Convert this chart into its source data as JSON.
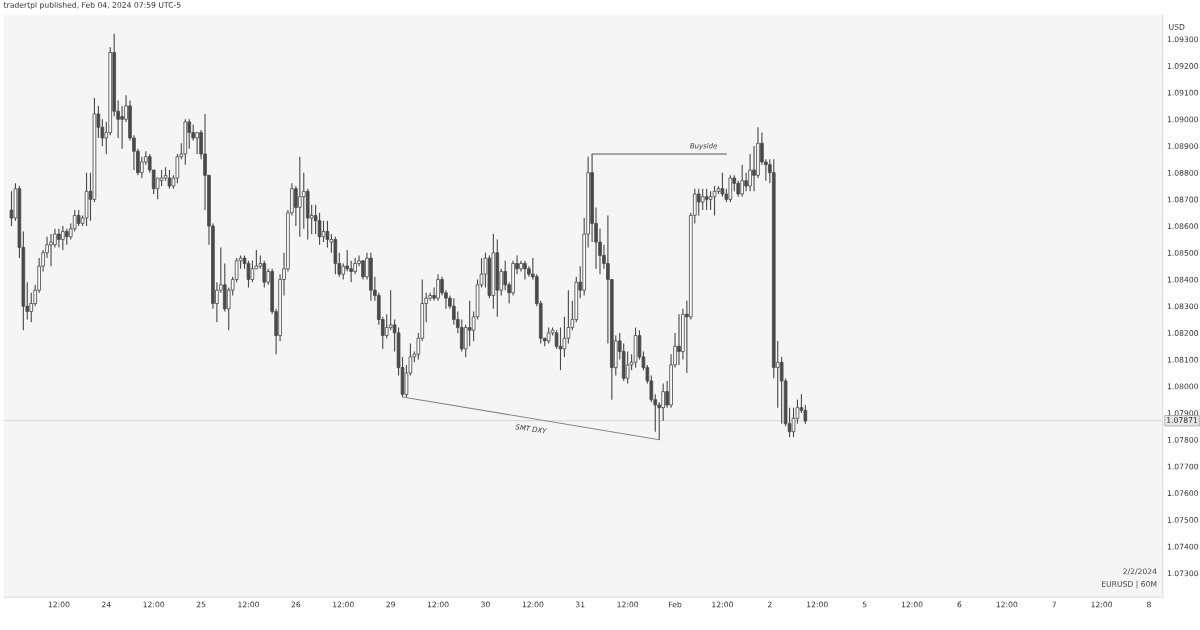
{
  "chart_data": {
    "type": "candlestick",
    "title": "tradertpl published, Feb 04, 2024 07:59 UTC-5",
    "ylabel": "USD",
    "color": "#4a4a4a",
    "categories": [
      null,
      null,
      null,
      null,
      null,
      null,
      null,
      null,
      null,
      null,
      null,
      null,
      "12:00",
      null,
      null,
      null,
      null,
      null,
      null,
      null,
      null,
      null,
      null,
      null,
      "24",
      null,
      null,
      null,
      null,
      null,
      null,
      null,
      null,
      null,
      null,
      null,
      "12:00",
      null,
      null,
      null,
      null,
      null,
      null,
      null,
      null,
      null,
      null,
      null,
      "25",
      null,
      null,
      null,
      null,
      null,
      null,
      null,
      null,
      null,
      null,
      null,
      "12:00",
      null,
      null,
      null,
      null,
      null,
      null,
      null,
      null,
      null,
      null,
      null,
      "26",
      null,
      null,
      null,
      null,
      null,
      null,
      null,
      null,
      null,
      null,
      null,
      "12:00",
      null,
      null,
      null,
      null,
      null,
      null,
      null,
      null,
      null,
      null,
      null,
      "29",
      null,
      null,
      null,
      null,
      null,
      null,
      null,
      null,
      null,
      null,
      null,
      "12:00",
      null,
      null,
      null,
      null,
      null,
      null,
      null,
      null,
      null,
      null,
      null,
      "30",
      null,
      null,
      null,
      null,
      null,
      null,
      null,
      null,
      null,
      null,
      null,
      "12:00",
      null,
      null,
      null,
      null,
      null,
      null,
      null,
      null,
      null,
      null,
      null,
      "31",
      null,
      null,
      null,
      null,
      null,
      null,
      null,
      null,
      null,
      null,
      null,
      "12:00",
      null,
      null,
      null,
      null,
      null,
      null,
      null,
      null,
      null,
      null,
      null,
      "Feb",
      null,
      null,
      null,
      null,
      null,
      null,
      null,
      null,
      null,
      null,
      null,
      "12:00",
      null,
      null,
      null,
      null,
      null,
      null,
      null,
      null,
      null,
      null,
      null,
      "2",
      null,
      null,
      null,
      null,
      null,
      null,
      null,
      null,
      null,
      null,
      null,
      "12:00",
      null,
      null,
      null,
      null,
      null,
      null,
      null,
      null,
      null,
      null,
      null,
      "5",
      null,
      null,
      null,
      null,
      null,
      null,
      null,
      null,
      null,
      null,
      null,
      "12:00",
      null,
      null,
      null,
      null,
      null,
      null,
      null,
      null,
      null,
      null,
      null,
      "6",
      null,
      null,
      null,
      null,
      null,
      null,
      null,
      null,
      null,
      null,
      null,
      "12:00",
      null,
      null,
      null,
      null,
      null,
      null,
      null,
      null,
      null,
      null,
      null,
      "7",
      null,
      null,
      null,
      null,
      null,
      null,
      null,
      null,
      null,
      null,
      null,
      "12:00",
      null,
      null,
      null,
      null,
      null,
      null,
      null,
      null,
      null,
      null,
      null,
      "8"
    ],
    "ohlc": [
      [
        1.0866,
        1.0873,
        1.086,
        1.0863
      ],
      [
        1.0863,
        1.0876,
        1.0862,
        1.0874
      ],
      [
        1.0874,
        1.0875,
        1.0848,
        1.0852
      ],
      [
        1.0852,
        1.0858,
        1.0821,
        1.083
      ],
      [
        1.083,
        1.0839,
        1.0825,
        1.0828
      ],
      [
        1.0828,
        1.0835,
        1.0824,
        1.0831
      ],
      [
        1.0831,
        1.0838,
        1.083,
        1.0836
      ],
      [
        1.0836,
        1.0848,
        1.0835,
        1.0845
      ],
      [
        1.0845,
        1.0851,
        1.0843,
        1.085
      ],
      [
        1.085,
        1.0856,
        1.0848,
        1.0853
      ],
      [
        1.0853,
        1.0857,
        1.0845,
        1.0854
      ],
      [
        1.0853,
        1.0859,
        1.0852,
        1.0857
      ],
      [
        1.0857,
        1.0859,
        1.0852,
        1.0855
      ],
      [
        1.0855,
        1.086,
        1.0851,
        1.0858
      ],
      [
        1.0858,
        1.0859,
        1.0853,
        1.0856
      ],
      [
        1.0856,
        1.0861,
        1.0855,
        1.0859
      ],
      [
        1.0859,
        1.0866,
        1.0858,
        1.0864
      ],
      [
        1.0864,
        1.0866,
        1.086,
        1.0861
      ],
      [
        1.0861,
        1.0864,
        1.086,
        1.0863
      ],
      [
        1.0863,
        1.088,
        1.086,
        1.0873
      ],
      [
        1.0873,
        1.088,
        1.0862,
        1.087
      ],
      [
        1.087,
        1.0908,
        1.0869,
        1.0902
      ],
      [
        1.0902,
        1.0905,
        1.0893,
        1.0897
      ],
      [
        1.0897,
        1.09,
        1.089,
        1.0893
      ],
      [
        1.0893,
        1.0899,
        1.0887,
        1.0895
      ],
      [
        1.0895,
        1.0927,
        1.0894,
        1.0925
      ],
      [
        1.0925,
        1.0932,
        1.0901,
        1.0903
      ],
      [
        1.0903,
        1.0907,
        1.0893,
        1.09
      ],
      [
        1.0901,
        1.0905,
        1.0889,
        1.09
      ],
      [
        1.09,
        1.0909,
        1.0899,
        1.0905
      ],
      [
        1.0905,
        1.0907,
        1.0892,
        1.0893
      ],
      [
        1.0893,
        1.0894,
        1.0881,
        1.0888
      ],
      [
        1.0888,
        1.0889,
        1.0879,
        1.088
      ],
      [
        1.088,
        1.0886,
        1.0878,
        1.0884
      ],
      [
        1.0884,
        1.0888,
        1.0883,
        1.0886
      ],
      [
        1.0886,
        1.0887,
        1.088,
        1.0881
      ],
      [
        1.0881,
        1.0881,
        1.0872,
        1.0874
      ],
      [
        1.0874,
        1.0878,
        1.087,
        1.0878
      ],
      [
        1.0877,
        1.0881,
        1.0875,
        1.0878
      ],
      [
        1.0878,
        1.0882,
        1.0877,
        1.0879
      ],
      [
        1.0878,
        1.0881,
        1.0874,
        1.0875
      ],
      [
        1.0875,
        1.0879,
        1.0874,
        1.0878
      ],
      [
        1.0878,
        1.0887,
        1.0876,
        1.0886
      ],
      [
        1.0886,
        1.0891,
        1.0885,
        1.0887
      ],
      [
        1.0887,
        1.09,
        1.0883,
        1.0899
      ],
      [
        1.0899,
        1.09,
        1.0889,
        1.0895
      ],
      [
        1.0895,
        1.0898,
        1.0892,
        1.0893
      ],
      [
        1.0893,
        1.0895,
        1.0887,
        1.0895
      ],
      [
        1.0895,
        1.0896,
        1.0885,
        1.0887
      ],
      [
        1.0887,
        1.0902,
        1.0866,
        1.0879
      ],
      [
        1.0879,
        1.0879,
        1.0853,
        1.086
      ],
      [
        1.086,
        1.0861,
        1.0829,
        1.0831
      ],
      [
        1.0831,
        1.0839,
        1.0824,
        1.0836
      ],
      [
        1.0836,
        1.0852,
        1.0835,
        1.0838
      ],
      [
        1.0838,
        1.0846,
        1.0828,
        1.0829
      ],
      [
        1.0829,
        1.0837,
        1.0821,
        1.0836
      ],
      [
        1.0836,
        1.0841,
        1.0834,
        1.084
      ],
      [
        1.084,
        1.0848,
        1.0839,
        1.0847
      ],
      [
        1.0847,
        1.0849,
        1.0844,
        1.0848
      ],
      [
        1.0848,
        1.0849,
        1.0844,
        1.0846
      ],
      [
        1.0846,
        1.0847,
        1.0837,
        1.084
      ],
      [
        1.084,
        1.0847,
        1.0839,
        1.0844
      ],
      [
        1.0844,
        1.0851,
        1.0844,
        1.0845
      ],
      [
        1.0845,
        1.0849,
        1.0844,
        1.0846
      ],
      [
        1.0846,
        1.0847,
        1.0837,
        1.0839
      ],
      [
        1.0839,
        1.0844,
        1.0838,
        1.0843
      ],
      [
        1.0843,
        1.0844,
        1.0827,
        1.0828
      ],
      [
        1.0828,
        1.0829,
        1.0812,
        1.0819
      ],
      [
        1.0819,
        1.0842,
        1.0817,
        1.084
      ],
      [
        1.084,
        1.085,
        1.0834,
        1.0844
      ],
      [
        1.0844,
        1.0866,
        1.0843,
        1.0865
      ],
      [
        1.0865,
        1.0876,
        1.0864,
        1.0874
      ],
      [
        1.0874,
        1.0875,
        1.086,
        1.0867
      ],
      [
        1.0867,
        1.0886,
        1.0856,
        1.0871
      ],
      [
        1.0871,
        1.088,
        1.0859,
        1.0873
      ],
      [
        1.0873,
        1.0874,
        1.0855,
        1.0863
      ],
      [
        1.0863,
        1.0868,
        1.0857,
        1.0864
      ],
      [
        1.0864,
        1.0868,
        1.0857,
        1.0862
      ],
      [
        1.0862,
        1.0865,
        1.0853,
        1.0856
      ],
      [
        1.0856,
        1.0862,
        1.0854,
        1.0858
      ],
      [
        1.0858,
        1.0862,
        1.0852,
        1.0855
      ],
      [
        1.0854,
        1.0857,
        1.085,
        1.0855
      ],
      [
        1.0855,
        1.0856,
        1.0842,
        1.0846
      ],
      [
        1.0846,
        1.085,
        1.0841,
        1.0842
      ],
      [
        1.0842,
        1.0846,
        1.084,
        1.0845
      ],
      [
        1.0845,
        1.0851,
        1.0843,
        1.0844
      ],
      [
        1.0844,
        1.0847,
        1.0839,
        1.0843
      ],
      [
        1.0843,
        1.0848,
        1.0842,
        1.0846
      ],
      [
        1.0846,
        1.0849,
        1.0845,
        1.0847
      ],
      [
        1.0847,
        1.0847,
        1.084,
        1.0841
      ],
      [
        1.0841,
        1.085,
        1.084,
        1.0848
      ],
      [
        1.0848,
        1.085,
        1.0832,
        1.0836
      ],
      [
        1.0836,
        1.0841,
        1.0832,
        1.0834
      ],
      [
        1.0834,
        1.0835,
        1.0823,
        1.0825
      ],
      [
        1.0825,
        1.0826,
        1.0814,
        1.0819
      ],
      [
        1.0819,
        1.0827,
        1.0818,
        1.0822
      ],
      [
        1.0822,
        1.0836,
        1.0821,
        1.0823
      ],
      [
        1.0823,
        1.0825,
        1.0813,
        1.082
      ],
      [
        1.082,
        1.0822,
        1.0804,
        1.0807
      ],
      [
        1.0807,
        1.0811,
        1.0796,
        1.0797
      ],
      [
        1.0797,
        1.0808,
        1.0796,
        1.0805
      ],
      [
        1.0805,
        1.0816,
        1.0804,
        1.0811
      ],
      [
        1.0811,
        1.0813,
        1.0809,
        1.0812
      ],
      [
        1.0812,
        1.082,
        1.081,
        1.0818
      ],
      [
        1.0818,
        1.084,
        1.0817,
        1.0831
      ],
      [
        1.0831,
        1.0835,
        1.0824,
        1.0833
      ],
      [
        1.0833,
        1.0835,
        1.0832,
        1.0834
      ],
      [
        1.0834,
        1.0837,
        1.0832,
        1.0833
      ],
      [
        1.0833,
        1.0842,
        1.0832,
        1.084
      ],
      [
        1.084,
        1.0841,
        1.0834,
        1.0835
      ],
      [
        1.0835,
        1.0836,
        1.0829,
        1.0833
      ],
      [
        1.0833,
        1.0834,
        1.0829,
        1.083
      ],
      [
        1.083,
        1.0833,
        1.0823,
        1.0825
      ],
      [
        1.0825,
        1.0828,
        1.082,
        1.0822
      ],
      [
        1.0822,
        1.0825,
        1.0813,
        1.0814
      ],
      [
        1.0814,
        1.0823,
        1.0811,
        1.0822
      ],
      [
        1.0822,
        1.0832,
        1.0815,
        1.0821
      ],
      [
        1.0821,
        1.0828,
        1.0817,
        1.0826
      ],
      [
        1.0826,
        1.084,
        1.0825,
        1.0838
      ],
      [
        1.0838,
        1.0848,
        1.0837,
        1.0842
      ],
      [
        1.0842,
        1.085,
        1.0837,
        1.0848
      ],
      [
        1.0848,
        1.0849,
        1.0833,
        1.0834
      ],
      [
        1.0834,
        1.0857,
        1.0829,
        1.085
      ],
      [
        1.085,
        1.0855,
        1.0826,
        1.0836
      ],
      [
        1.0836,
        1.0844,
        1.0834,
        1.0843
      ],
      [
        1.0843,
        1.0847,
        1.0836,
        1.0838
      ],
      [
        1.0838,
        1.0839,
        1.0831,
        1.0835
      ],
      [
        1.0835,
        1.0847,
        1.0834,
        1.0846
      ],
      [
        1.0846,
        1.0849,
        1.0842,
        1.0844
      ],
      [
        1.0844,
        1.0847,
        1.0843,
        1.0846
      ],
      [
        1.0846,
        1.0847,
        1.084,
        1.0844
      ],
      [
        1.0844,
        1.0845,
        1.0841,
        1.0842
      ],
      [
        1.0842,
        1.0848,
        1.084,
        1.0841
      ],
      [
        1.0841,
        1.0842,
        1.083,
        1.0831
      ],
      [
        1.0831,
        1.0832,
        1.0816,
        1.0818
      ],
      [
        1.0818,
        1.0818,
        1.0815,
        1.0817
      ],
      [
        1.0817,
        1.0822,
        1.0816,
        1.082
      ],
      [
        1.082,
        1.0822,
        1.0819,
        1.0821
      ],
      [
        1.082,
        1.0821,
        1.0814,
        1.0815
      ],
      [
        1.0815,
        1.0822,
        1.0806,
        1.0814
      ],
      [
        1.0814,
        1.0826,
        1.0811,
        1.0818
      ],
      [
        1.0818,
        1.0836,
        1.0816,
        1.0822
      ],
      [
        1.0822,
        1.0832,
        1.0821,
        1.0825
      ],
      [
        1.0825,
        1.0841,
        1.0824,
        1.0839
      ],
      [
        1.0839,
        1.0845,
        1.0833,
        1.0836
      ],
      [
        1.0836,
        1.0863,
        1.0834,
        1.0857
      ],
      [
        1.0857,
        1.0886,
        1.0852,
        1.088
      ],
      [
        1.088,
        1.0887,
        1.0854,
        1.0861
      ],
      [
        1.0861,
        1.0867,
        1.0844,
        1.0854
      ],
      [
        1.0854,
        1.0859,
        1.0842,
        1.0849
      ],
      [
        1.0849,
        1.0853,
        1.0844,
        1.0846
      ],
      [
        1.0846,
        1.0864,
        1.0816,
        1.084
      ],
      [
        1.084,
        1.084,
        1.0795,
        1.0807
      ],
      [
        1.0807,
        1.0819,
        1.0804,
        1.0817
      ],
      [
        1.0817,
        1.082,
        1.081,
        1.0813
      ],
      [
        1.0813,
        1.0816,
        1.0802,
        1.0803
      ],
      [
        1.0803,
        1.0813,
        1.0801,
        1.0808
      ],
      [
        1.0808,
        1.0812,
        1.0806,
        1.0809
      ],
      [
        1.0809,
        1.0822,
        1.0807,
        1.0819
      ],
      [
        1.0819,
        1.0821,
        1.081,
        1.0811
      ],
      [
        1.0811,
        1.0813,
        1.0806,
        1.0807
      ],
      [
        1.0807,
        1.0808,
        1.0801,
        1.0802
      ],
      [
        1.0802,
        1.0804,
        1.0794,
        1.0795
      ],
      [
        1.0795,
        1.0797,
        1.0783,
        1.0793
      ],
      [
        1.0793,
        1.0794,
        1.078,
        1.0792
      ],
      [
        1.0792,
        1.0801,
        1.0787,
        1.0798
      ],
      [
        1.0798,
        1.0802,
        1.0792,
        1.0793
      ],
      [
        1.0793,
        1.0812,
        1.0792,
        1.0808
      ],
      [
        1.0808,
        1.082,
        1.0807,
        1.0815
      ],
      [
        1.0815,
        1.0827,
        1.0808,
        1.0813
      ],
      [
        1.0813,
        1.0829,
        1.081,
        1.0827
      ],
      [
        1.0827,
        1.0832,
        1.0805,
        1.0826
      ],
      [
        1.0826,
        1.0865,
        1.0825,
        1.0864
      ],
      [
        1.0864,
        1.0874,
        1.0861,
        1.0872
      ],
      [
        1.0872,
        1.0874,
        1.0864,
        1.0869
      ],
      [
        1.0869,
        1.0874,
        1.0866,
        1.0871
      ],
      [
        1.0871,
        1.0874,
        1.0866,
        1.087
      ],
      [
        1.087,
        1.0873,
        1.0866,
        1.0871
      ],
      [
        1.0871,
        1.0875,
        1.0864,
        1.0873
      ],
      [
        1.0873,
        1.0875,
        1.0872,
        1.0874
      ],
      [
        1.0874,
        1.088,
        1.0871,
        1.0872
      ],
      [
        1.0872,
        1.0874,
        1.0869,
        1.087
      ],
      [
        1.087,
        1.0879,
        1.0869,
        1.0878
      ],
      [
        1.0878,
        1.0879,
        1.0873,
        1.0876
      ],
      [
        1.0876,
        1.0877,
        1.0871,
        1.0872
      ],
      [
        1.0872,
        1.0883,
        1.0871,
        1.0877
      ],
      [
        1.0877,
        1.088,
        1.0873,
        1.0875
      ],
      [
        1.0875,
        1.0887,
        1.0873,
        1.0881
      ],
      [
        1.0881,
        1.089,
        1.0873,
        1.0879
      ],
      [
        1.0879,
        1.0897,
        1.0878,
        1.0891
      ],
      [
        1.0891,
        1.0895,
        1.0883,
        1.0884
      ],
      [
        1.0884,
        1.0885,
        1.0877,
        1.0883
      ],
      [
        1.0883,
        1.0885,
        1.0876,
        1.088
      ],
      [
        1.088,
        1.0885,
        1.0803,
        1.0807
      ],
      [
        1.0807,
        1.0817,
        1.0792,
        1.0809
      ],
      [
        1.0809,
        1.0811,
        1.0786,
        1.0802
      ],
      [
        1.0802,
        1.0803,
        1.0785,
        1.0786
      ],
      [
        1.0786,
        1.0792,
        1.0781,
        1.0783
      ],
      [
        1.0783,
        1.0792,
        1.0781,
        1.0788
      ],
      [
        1.0788,
        1.0795,
        1.0786,
        1.0792
      ],
      [
        1.0792,
        1.0797,
        1.079,
        1.0791
      ],
      [
        1.0791,
        1.0793,
        1.0786,
        1.0787
      ],
      null,
      null,
      null,
      null,
      null,
      null,
      null,
      null,
      null,
      null,
      null,
      null,
      null,
      null,
      null,
      null,
      null,
      null,
      null,
      null,
      null,
      null,
      null,
      null,
      null,
      null,
      null,
      null,
      null,
      null,
      null,
      null,
      null,
      null,
      null,
      null,
      null,
      null,
      null,
      null,
      null,
      null,
      null,
      null,
      null,
      null,
      null,
      null,
      null,
      null,
      null,
      null,
      null,
      null,
      null,
      null,
      null,
      null,
      null,
      null,
      null,
      null,
      null,
      null,
      null,
      null,
      null,
      null,
      null,
      null,
      null,
      null,
      null,
      null,
      null,
      null,
      null,
      null,
      null,
      null,
      null,
      null,
      null,
      null,
      null,
      null,
      null
    ],
    "series": [
      {
        "type": "line",
        "name": "Buyside",
        "color": "#555555",
        "values": [
          null,
          null,
          null,
          null,
          null,
          null,
          null,
          null,
          null,
          null,
          null,
          null,
          null,
          null,
          null,
          null,
          null,
          null,
          null,
          null,
          null,
          null,
          null,
          null,
          null,
          null,
          null,
          null,
          null,
          null,
          null,
          null,
          null,
          null,
          null,
          null,
          null,
          null,
          null,
          null,
          null,
          null,
          null,
          null,
          null,
          null,
          null,
          null,
          null,
          null,
          null,
          null,
          null,
          null,
          null,
          null,
          null,
          null,
          null,
          null,
          null,
          null,
          null,
          null,
          null,
          null,
          null,
          null,
          null,
          null,
          null,
          null,
          null,
          null,
          null,
          null,
          null,
          null,
          null,
          null,
          null,
          null,
          null,
          null,
          null,
          null,
          null,
          null,
          null,
          null,
          null,
          null,
          null,
          null,
          null,
          null,
          null,
          null,
          null,
          null,
          null,
          null,
          null,
          null,
          null,
          null,
          null,
          null,
          null,
          null,
          null,
          null,
          null,
          null,
          null,
          null,
          null,
          null,
          null,
          null,
          null,
          null,
          null,
          null,
          null,
          null,
          null,
          null,
          null,
          null,
          null,
          null,
          null,
          null,
          null,
          null,
          null,
          null,
          null,
          null,
          null,
          null,
          null,
          null,
          null,
          null,
          null,
          1.0887,
          null,
          null,
          null,
          null,
          null,
          null,
          null,
          null,
          null,
          null,
          null,
          null,
          null,
          null,
          null,
          null,
          null,
          null,
          null,
          null,
          null,
          null,
          null,
          null,
          null,
          null,
          null,
          null,
          null,
          null,
          null,
          null,
          null,
          1.0887,
          null,
          null,
          null,
          null,
          null,
          null,
          null,
          null,
          null,
          null,
          null,
          null,
          null,
          null,
          null,
          null,
          null,
          null,
          null,
          null,
          null,
          null,
          null,
          null,
          null,
          null,
          null,
          null,
          null,
          null,
          null,
          null,
          null,
          null,
          null,
          null,
          null,
          null,
          null,
          null,
          null,
          null,
          null,
          null,
          null,
          null,
          null,
          null,
          null,
          null,
          null,
          null,
          null,
          null,
          null,
          null,
          null,
          null,
          null,
          null,
          null,
          null,
          null,
          null,
          null,
          null,
          null,
          null,
          null,
          null,
          null,
          null,
          null,
          null,
          null,
          null,
          null,
          null,
          null,
          null,
          null,
          null,
          null,
          null,
          null,
          null,
          null,
          null,
          null,
          null,
          null,
          null,
          null,
          null,
          null,
          null,
          null,
          null,
          null,
          null,
          null,
          null,
          null,
          null,
          null,
          null,
          null
        ]
      },
      {
        "type": "line",
        "name": "SMT DXY",
        "color": "#888888",
        "values": [
          null,
          null,
          null,
          null,
          null,
          null,
          null,
          null,
          null,
          null,
          null,
          null,
          null,
          null,
          null,
          null,
          null,
          null,
          null,
          null,
          null,
          null,
          null,
          null,
          null,
          null,
          null,
          null,
          null,
          null,
          null,
          null,
          null,
          null,
          null,
          null,
          null,
          null,
          null,
          null,
          null,
          null,
          null,
          null,
          null,
          null,
          null,
          null,
          null,
          null,
          null,
          null,
          null,
          null,
          null,
          null,
          null,
          null,
          null,
          null,
          null,
          null,
          null,
          null,
          null,
          null,
          null,
          null,
          null,
          null,
          null,
          null,
          null,
          null,
          null,
          null,
          null,
          null,
          null,
          null,
          null,
          null,
          null,
          null,
          null,
          null,
          null,
          null,
          null,
          null,
          null,
          null,
          null,
          null,
          null,
          null,
          null,
          null,
          null,
          1.0796,
          null,
          null,
          null,
          null,
          null,
          null,
          null,
          null,
          null,
          null,
          null,
          null,
          null,
          null,
          null,
          null,
          null,
          null,
          null,
          null,
          null,
          null,
          null,
          null,
          null,
          null,
          null,
          null,
          null,
          null,
          null,
          null,
          null,
          null,
          null,
          null,
          null,
          null,
          null,
          null,
          null,
          null,
          null,
          null,
          null,
          null,
          null,
          null,
          null,
          null,
          null,
          null,
          null,
          null,
          null,
          null,
          null,
          null,
          null,
          null,
          null,
          null,
          null,
          null,
          1.078,
          null,
          null,
          null,
          null,
          null,
          null,
          null,
          null,
          null,
          null,
          null,
          null,
          null,
          null,
          null,
          null,
          null,
          null,
          null,
          null,
          null,
          null,
          null,
          null,
          null,
          null,
          null,
          null,
          null,
          null,
          null,
          null,
          null,
          null,
          null,
          null,
          null,
          null,
          null,
          null,
          null,
          null,
          null,
          null,
          null,
          null,
          null,
          null,
          null,
          null,
          null,
          null,
          null,
          null,
          null,
          null,
          null,
          null,
          null,
          null,
          null,
          null,
          null,
          null,
          null,
          null,
          null,
          null,
          null,
          null,
          null,
          null,
          null,
          null,
          null,
          null,
          null,
          null,
          null,
          null,
          null,
          null,
          null,
          null,
          null,
          null,
          null,
          null,
          null,
          null,
          null,
          null,
          null,
          null,
          null,
          null,
          null,
          null,
          null,
          null,
          null,
          null,
          null,
          null,
          null,
          null,
          null,
          null,
          null,
          null,
          null,
          null,
          null,
          null,
          null,
          null,
          null,
          null,
          null,
          null,
          null,
          null,
          null,
          null
        ]
      }
    ],
    "ref_lines": [
      {
        "axis": "y",
        "value": 1.07871,
        "label": "1.07871",
        "color": "#cfcfcf",
        "line_style": "solid"
      }
    ],
    "annotations": [
      "2/2/2024",
      "EURUSD | 60M"
    ],
    "ylim": [
      1.0721,
      1.0939
    ],
    "yticks": [
      {
        "value": 1.073,
        "label": "1.07300"
      },
      {
        "value": 1.074,
        "label": "1.07400"
      },
      {
        "value": 1.075,
        "label": "1.07500"
      },
      {
        "value": 1.076,
        "label": "1.07600"
      },
      {
        "value": 1.077,
        "label": "1.07700"
      },
      {
        "value": 1.078,
        "label": "1.07800"
      },
      {
        "value": 1.079,
        "label": "1.07900"
      },
      {
        "value": 1.08,
        "label": "1.08000"
      },
      {
        "value": 1.081,
        "label": "1.08100"
      },
      {
        "value": 1.082,
        "label": "1.08200"
      },
      {
        "value": 1.083,
        "label": "1.08300"
      },
      {
        "value": 1.084,
        "label": "1.08400"
      },
      {
        "value": 1.085,
        "label": "1.08500"
      },
      {
        "value": 1.086,
        "label": "1.08600"
      },
      {
        "value": 1.087,
        "label": "1.08700"
      },
      {
        "value": 1.088,
        "label": "1.08800"
      },
      {
        "value": 1.089,
        "label": "1.08900"
      },
      {
        "value": 1.09,
        "label": "1.09000"
      },
      {
        "value": 1.091,
        "label": "1.09100"
      },
      {
        "value": 1.092,
        "label": "1.09200"
      },
      {
        "value": 1.093,
        "label": "1.09300"
      }
    ]
  }
}
